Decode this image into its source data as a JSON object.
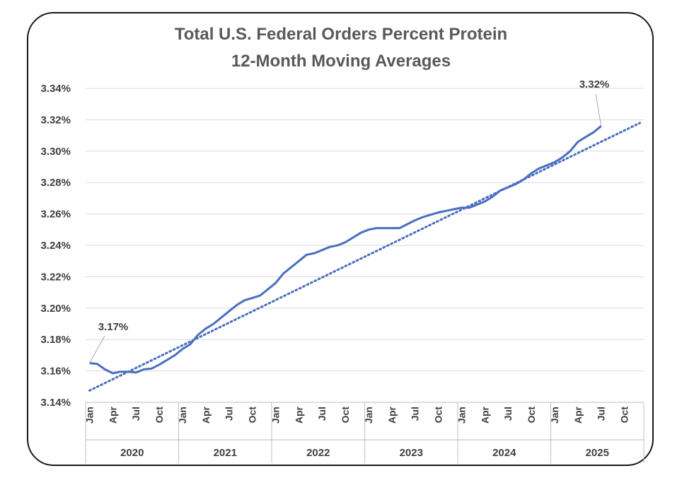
{
  "chart_data": {
    "type": "line",
    "title": "Total U.S. Federal Orders Percent Protein",
    "subtitle": "12-Month Moving Averages",
    "ylim": [
      3.14,
      3.34
    ],
    "y_ticks": [
      "3.14%",
      "3.16%",
      "3.18%",
      "3.20%",
      "3.22%",
      "3.24%",
      "3.26%",
      "3.28%",
      "3.30%",
      "3.32%",
      "3.34%"
    ],
    "month_tick_labels": [
      "Jan",
      "Apr",
      "Jul",
      "Oct"
    ],
    "years": [
      "2020",
      "2021",
      "2022",
      "2023",
      "2024",
      "2025"
    ],
    "grid": true,
    "series": [
      {
        "style": "solid",
        "color": "#4a6fbf",
        "start": "2020-01",
        "values": [
          3.165,
          3.1645,
          3.161,
          3.1585,
          3.1595,
          3.1595,
          3.159,
          3.161,
          3.1615,
          3.164,
          3.167,
          3.17,
          3.174,
          3.177,
          3.183,
          3.187,
          3.19,
          3.194,
          3.198,
          3.202,
          3.205,
          3.2065,
          3.208,
          3.212,
          3.216,
          3.222,
          3.226,
          3.23,
          3.234,
          3.235,
          3.237,
          3.239,
          3.24,
          3.242,
          3.245,
          3.248,
          3.25,
          3.251,
          3.251,
          3.251,
          3.251,
          3.2535,
          3.256,
          3.258,
          3.2595,
          3.261,
          3.262,
          3.263,
          3.264,
          3.264,
          3.266,
          3.268,
          3.271,
          3.275,
          3.277,
          3.279,
          3.282,
          3.286,
          3.289,
          3.291,
          3.293,
          3.296,
          3.3,
          3.306,
          3.309,
          3.312,
          3.316
        ]
      },
      {
        "style": "dotted",
        "color": "#4a6fbf",
        "trend": "linear",
        "start": "2020-01",
        "end": "2025-12",
        "start_value": 3.1475,
        "end_value": 3.318
      }
    ],
    "annotations": [
      {
        "text": "3.17%",
        "point": "2020-01"
      },
      {
        "text": "3.32%",
        "point": "2025-07"
      }
    ]
  }
}
